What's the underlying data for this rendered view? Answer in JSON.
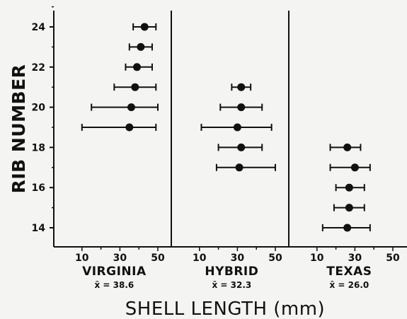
{
  "chart_data": {
    "type": "scatter",
    "subtype": "dot-with-error-bars",
    "xlabel": "SHELL LENGTH (mm)",
    "ylabel": "RIB NUMBER",
    "x_ticks": [
      10,
      30,
      50
    ],
    "y_ticks": [
      14,
      16,
      18,
      20,
      22,
      24
    ],
    "xlim": [
      0,
      55
    ],
    "ylim": [
      13,
      25
    ],
    "grid": false,
    "panels": [
      {
        "name": "VIRGINIA",
        "mean_label": "x̄ = 38.6",
        "points": [
          {
            "y": 24,
            "x": 43,
            "low": 37,
            "high": 49
          },
          {
            "y": 23,
            "x": 41,
            "low": 35,
            "high": 47
          },
          {
            "y": 22,
            "x": 39,
            "low": 33,
            "high": 47
          },
          {
            "y": 21,
            "x": 38,
            "low": 27,
            "high": 49
          },
          {
            "y": 20,
            "x": 36,
            "low": 15,
            "high": 50
          },
          {
            "y": 19,
            "x": 35,
            "low": 10,
            "high": 49
          }
        ]
      },
      {
        "name": "HYBRID",
        "mean_label": "x̄ = 32.3",
        "points": [
          {
            "y": 21,
            "x": 32,
            "low": 27,
            "high": 37
          },
          {
            "y": 20,
            "x": 32,
            "low": 21,
            "high": 43
          },
          {
            "y": 19,
            "x": 30,
            "low": 11,
            "high": 48
          },
          {
            "y": 18,
            "x": 32,
            "low": 20,
            "high": 43
          },
          {
            "y": 17,
            "x": 31,
            "low": 19,
            "high": 50
          }
        ]
      },
      {
        "name": "TEXAS",
        "mean_label": "x̄ = 26.0",
        "points": [
          {
            "y": 18,
            "x": 26,
            "low": 17,
            "high": 33
          },
          {
            "y": 17,
            "x": 30,
            "low": 17,
            "high": 38
          },
          {
            "y": 16,
            "x": 27,
            "low": 20,
            "high": 35
          },
          {
            "y": 15,
            "x": 27,
            "low": 19,
            "high": 35
          },
          {
            "y": 14,
            "x": 26,
            "low": 13,
            "high": 38
          }
        ]
      }
    ]
  }
}
